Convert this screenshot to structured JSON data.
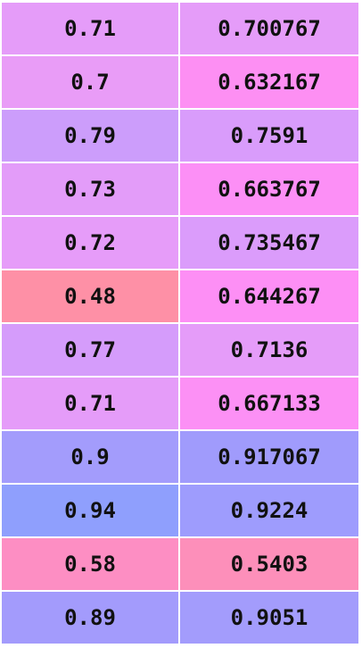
{
  "table": {
    "rows": [
      {
        "a": "0.71",
        "b": "0.700767",
        "a_color": "#e59cf9",
        "b_color": "#e59cf9"
      },
      {
        "a": "0.7",
        "b": "0.632167",
        "a_color": "#e99cf7",
        "b_color": "#fd8ff3"
      },
      {
        "a": "0.79",
        "b": "0.7591",
        "a_color": "#cc9dfb",
        "b_color": "#d99cfb"
      },
      {
        "a": "0.73",
        "b": "0.663767",
        "a_color": "#e39cf9",
        "b_color": "#fc8ff6"
      },
      {
        "a": "0.72",
        "b": "0.735467",
        "a_color": "#e69cf9",
        "b_color": "#db9cfb"
      },
      {
        "a": "0.48",
        "b": "0.644267",
        "a_color": "#fe90a6",
        "b_color": "#fd8ff5"
      },
      {
        "a": "0.77",
        "b": "0.7136",
        "a_color": "#d59cfb",
        "b_color": "#e59cf9"
      },
      {
        "a": "0.71",
        "b": "0.667133",
        "a_color": "#e59cf9",
        "b_color": "#fc90f5"
      },
      {
        "a": "0.9",
        "b": "0.917067",
        "a_color": "#a39cfc",
        "b_color": "#a09bfc"
      },
      {
        "a": "0.94",
        "b": "0.9224",
        "a_color": "#8f9ffd",
        "b_color": "#9e9cfd"
      },
      {
        "a": "0.58",
        "b": "0.5403",
        "a_color": "#fd8ec3",
        "b_color": "#fd8fba"
      },
      {
        "a": "0.89",
        "b": "0.9051",
        "a_color": "#a39bfc",
        "b_color": "#a39cfc"
      }
    ]
  }
}
